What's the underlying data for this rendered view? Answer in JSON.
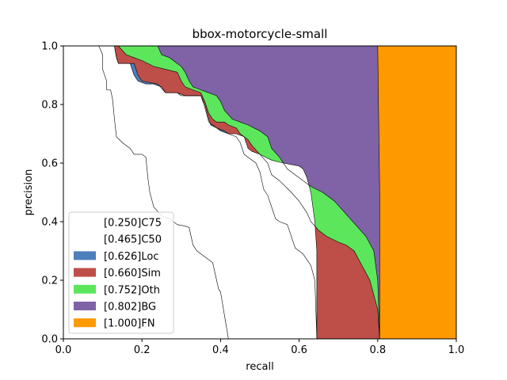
{
  "chart_data": {
    "type": "area",
    "title": "bbox-motorcycle-small",
    "xlabel": "recall",
    "ylabel": "precision",
    "xlim": [
      0,
      1
    ],
    "ylim": [
      0,
      1
    ],
    "xticks": [
      "0.0",
      "0.2",
      "0.4",
      "0.6",
      "0.8",
      "1.0"
    ],
    "yticks": [
      "0.0",
      "0.2",
      "0.4",
      "0.6",
      "0.8",
      "1.0"
    ],
    "grid": false,
    "legend_position": "lower-left",
    "series": [
      {
        "name": "[0.250]C75",
        "color": "#ffffff",
        "points": [
          [
            0.0,
            1.0
          ],
          [
            0.09,
            1.0
          ],
          [
            0.1,
            0.97
          ],
          [
            0.1,
            0.92
          ],
          [
            0.11,
            0.88
          ],
          [
            0.11,
            0.85
          ],
          [
            0.12,
            0.85
          ],
          [
            0.125,
            0.82
          ],
          [
            0.13,
            0.75
          ],
          [
            0.135,
            0.69
          ],
          [
            0.15,
            0.67
          ],
          [
            0.17,
            0.65
          ],
          [
            0.18,
            0.63
          ],
          [
            0.2,
            0.63
          ],
          [
            0.21,
            0.62
          ],
          [
            0.215,
            0.55
          ],
          [
            0.22,
            0.5
          ],
          [
            0.23,
            0.45
          ],
          [
            0.25,
            0.42
          ],
          [
            0.27,
            0.41
          ],
          [
            0.29,
            0.39
          ],
          [
            0.31,
            0.385
          ],
          [
            0.32,
            0.38
          ],
          [
            0.325,
            0.35
          ],
          [
            0.33,
            0.32
          ],
          [
            0.34,
            0.3
          ],
          [
            0.35,
            0.29
          ],
          [
            0.36,
            0.28
          ],
          [
            0.38,
            0.26
          ],
          [
            0.39,
            0.2
          ],
          [
            0.395,
            0.17
          ],
          [
            0.4,
            0.16
          ],
          [
            0.405,
            0.12
          ],
          [
            0.41,
            0.08
          ],
          [
            0.415,
            0.04
          ],
          [
            0.42,
            0.0
          ]
        ]
      },
      {
        "name": "[0.465]C50",
        "color": "#ffffff",
        "points": [
          [
            0.0,
            1.0
          ],
          [
            0.13,
            1.0
          ],
          [
            0.135,
            0.96
          ],
          [
            0.14,
            0.94
          ],
          [
            0.17,
            0.94
          ],
          [
            0.18,
            0.9
          ],
          [
            0.19,
            0.88
          ],
          [
            0.21,
            0.87
          ],
          [
            0.23,
            0.87
          ],
          [
            0.25,
            0.86
          ],
          [
            0.26,
            0.84
          ],
          [
            0.29,
            0.84
          ],
          [
            0.31,
            0.83
          ],
          [
            0.33,
            0.83
          ],
          [
            0.35,
            0.83
          ],
          [
            0.36,
            0.8
          ],
          [
            0.37,
            0.75
          ],
          [
            0.375,
            0.73
          ],
          [
            0.39,
            0.72
          ],
          [
            0.4,
            0.71
          ],
          [
            0.42,
            0.7
          ],
          [
            0.44,
            0.7
          ],
          [
            0.46,
            0.69
          ],
          [
            0.47,
            0.65
          ],
          [
            0.48,
            0.64
          ],
          [
            0.5,
            0.63
          ],
          [
            0.53,
            0.61
          ],
          [
            0.56,
            0.6
          ],
          [
            0.6,
            0.59
          ],
          [
            0.61,
            0.58
          ],
          [
            0.62,
            0.55
          ],
          [
            0.63,
            0.5
          ],
          [
            0.64,
            0.4
          ],
          [
            0.645,
            0.3
          ],
          [
            0.645,
            0.0
          ]
        ]
      },
      {
        "name": "[0.626]Loc",
        "color": "#4c7fbb",
        "points": [
          [
            0.0,
            1.0
          ],
          [
            0.13,
            1.0
          ],
          [
            0.135,
            0.96
          ],
          [
            0.14,
            0.94
          ],
          [
            0.18,
            0.94
          ],
          [
            0.19,
            0.9
          ],
          [
            0.2,
            0.88
          ],
          [
            0.24,
            0.87
          ],
          [
            0.26,
            0.84
          ],
          [
            0.29,
            0.84
          ],
          [
            0.3,
            0.83
          ],
          [
            0.35,
            0.83
          ],
          [
            0.36,
            0.79
          ],
          [
            0.37,
            0.74
          ],
          [
            0.38,
            0.73
          ],
          [
            0.39,
            0.72
          ],
          [
            0.41,
            0.71
          ],
          [
            0.42,
            0.7
          ],
          [
            0.44,
            0.69
          ],
          [
            0.45,
            0.67
          ],
          [
            0.46,
            0.63
          ],
          [
            0.47,
            0.62
          ],
          [
            0.49,
            0.6
          ],
          [
            0.5,
            0.57
          ],
          [
            0.51,
            0.51
          ],
          [
            0.52,
            0.49
          ],
          [
            0.53,
            0.45
          ],
          [
            0.54,
            0.41
          ],
          [
            0.55,
            0.4
          ],
          [
            0.57,
            0.39
          ],
          [
            0.58,
            0.35
          ],
          [
            0.59,
            0.31
          ],
          [
            0.6,
            0.3
          ],
          [
            0.61,
            0.29
          ],
          [
            0.62,
            0.27
          ],
          [
            0.63,
            0.25
          ],
          [
            0.64,
            0.2
          ],
          [
            0.645,
            0.0
          ]
        ]
      },
      {
        "name": "[0.660]Sim",
        "color": "#be4e48",
        "points": [
          [
            0.0,
            1.0
          ],
          [
            0.14,
            1.0
          ],
          [
            0.16,
            0.97
          ],
          [
            0.18,
            0.96
          ],
          [
            0.2,
            0.95
          ],
          [
            0.23,
            0.93
          ],
          [
            0.26,
            0.92
          ],
          [
            0.29,
            0.91
          ],
          [
            0.3,
            0.88
          ],
          [
            0.31,
            0.86
          ],
          [
            0.33,
            0.85
          ],
          [
            0.35,
            0.84
          ],
          [
            0.36,
            0.81
          ],
          [
            0.37,
            0.77
          ],
          [
            0.38,
            0.75
          ],
          [
            0.39,
            0.74
          ],
          [
            0.41,
            0.74
          ],
          [
            0.42,
            0.73
          ],
          [
            0.44,
            0.72
          ],
          [
            0.45,
            0.7
          ],
          [
            0.46,
            0.69
          ],
          [
            0.47,
            0.68
          ],
          [
            0.48,
            0.66
          ],
          [
            0.5,
            0.63
          ],
          [
            0.52,
            0.6
          ],
          [
            0.53,
            0.56
          ],
          [
            0.55,
            0.54
          ],
          [
            0.58,
            0.5
          ],
          [
            0.6,
            0.47
          ],
          [
            0.62,
            0.43
          ],
          [
            0.63,
            0.4
          ],
          [
            0.65,
            0.37
          ],
          [
            0.67,
            0.35
          ],
          [
            0.7,
            0.33
          ],
          [
            0.72,
            0.32
          ],
          [
            0.74,
            0.3
          ],
          [
            0.76,
            0.25
          ],
          [
            0.78,
            0.2
          ],
          [
            0.8,
            0.1
          ],
          [
            0.805,
            0.0
          ]
        ]
      },
      {
        "name": "[0.752]Oth",
        "color": "#5ce65c",
        "points": [
          [
            0.0,
            1.0
          ],
          [
            0.24,
            1.0
          ],
          [
            0.25,
            0.97
          ],
          [
            0.27,
            0.96
          ],
          [
            0.29,
            0.94
          ],
          [
            0.3,
            0.93
          ],
          [
            0.31,
            0.91
          ],
          [
            0.32,
            0.88
          ],
          [
            0.33,
            0.86
          ],
          [
            0.35,
            0.85
          ],
          [
            0.37,
            0.84
          ],
          [
            0.39,
            0.83
          ],
          [
            0.4,
            0.81
          ],
          [
            0.41,
            0.78
          ],
          [
            0.43,
            0.75
          ],
          [
            0.45,
            0.74
          ],
          [
            0.47,
            0.73
          ],
          [
            0.5,
            0.71
          ],
          [
            0.52,
            0.69
          ],
          [
            0.53,
            0.65
          ],
          [
            0.55,
            0.62
          ],
          [
            0.57,
            0.58
          ],
          [
            0.6,
            0.55
          ],
          [
            0.63,
            0.52
          ],
          [
            0.66,
            0.5
          ],
          [
            0.69,
            0.47
          ],
          [
            0.71,
            0.44
          ],
          [
            0.73,
            0.41
          ],
          [
            0.75,
            0.38
          ],
          [
            0.77,
            0.35
          ],
          [
            0.79,
            0.3
          ],
          [
            0.8,
            0.2
          ],
          [
            0.805,
            0.0
          ]
        ]
      },
      {
        "name": "[0.802]BG",
        "color": "#8062a7",
        "points": [
          [
            0.0,
            1.0
          ],
          [
            0.8,
            1.0
          ],
          [
            0.805,
            0.5
          ],
          [
            0.805,
            0.0
          ]
        ]
      },
      {
        "name": "[1.000]FN",
        "color": "#ff9900",
        "points": [
          [
            0.0,
            1.0
          ],
          [
            1.0,
            1.0
          ],
          [
            1.0,
            0.0
          ]
        ]
      }
    ]
  }
}
